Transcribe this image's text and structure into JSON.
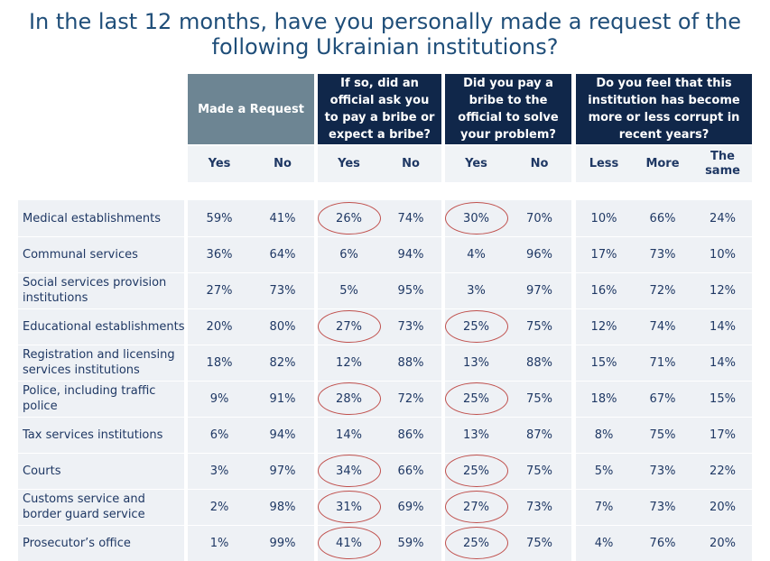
{
  "title": "In the last 12 months, have you personally made a request of the following Ukrainian institutions?",
  "headers": [
    "Made a Request",
    "If so, did an official ask you to pay a bribe or expect a bribe?",
    "Did you pay a bribe to the official to solve your problem?",
    "Do you feel that this institution has become more or less corrupt in recent years?"
  ],
  "subheaders": [
    "Yes",
    "No",
    "Yes",
    "No",
    "Yes",
    "No",
    "Less",
    "More",
    "The same"
  ],
  "rows": [
    {
      "label": "Medical establishments",
      "values": [
        "59%",
        "41%",
        "26%",
        "74%",
        "30%",
        "70%",
        "10%",
        "66%",
        "24%"
      ],
      "circled": [
        2,
        4
      ]
    },
    {
      "label": "Communal services",
      "values": [
        "36%",
        "64%",
        "6%",
        "94%",
        "4%",
        "96%",
        "17%",
        "73%",
        "10%"
      ],
      "circled": []
    },
    {
      "label": "Social services provision institutions",
      "values": [
        "27%",
        "73%",
        "5%",
        "95%",
        "3%",
        "97%",
        "16%",
        "72%",
        "12%"
      ],
      "circled": []
    },
    {
      "label": "Educational establishments",
      "values": [
        "20%",
        "80%",
        "27%",
        "73%",
        "25%",
        "75%",
        "12%",
        "74%",
        "14%"
      ],
      "circled": [
        2,
        4
      ]
    },
    {
      "label": "Registration and licensing services institutions",
      "values": [
        "18%",
        "82%",
        "12%",
        "88%",
        "13%",
        "88%",
        "15%",
        "71%",
        "14%"
      ],
      "circled": []
    },
    {
      "label": "Police, including traffic police",
      "values": [
        "9%",
        "91%",
        "28%",
        "72%",
        "25%",
        "75%",
        "18%",
        "67%",
        "15%"
      ],
      "circled": [
        2,
        4
      ]
    },
    {
      "label": "Tax services institutions",
      "values": [
        "6%",
        "94%",
        "14%",
        "86%",
        "13%",
        "87%",
        "8%",
        "75%",
        "17%"
      ],
      "circled": []
    },
    {
      "label": "Courts",
      "values": [
        "3%",
        "97%",
        "34%",
        "66%",
        "25%",
        "75%",
        "5%",
        "73%",
        "22%"
      ],
      "circled": [
        2,
        4
      ]
    },
    {
      "label": "Customs service and border guard service",
      "values": [
        "2%",
        "98%",
        "31%",
        "69%",
        "27%",
        "73%",
        "7%",
        "73%",
        "20%"
      ],
      "circled": [
        2,
        4
      ]
    },
    {
      "label": "Prosecutor’s office",
      "values": [
        "1%",
        "99%",
        "41%",
        "59%",
        "25%",
        "75%",
        "4%",
        "76%",
        "20%"
      ],
      "circled": [
        2,
        4
      ]
    }
  ],
  "colors": {
    "title": "#1f4e79",
    "header_gray": "#6d8593",
    "header_navy": "#10274a",
    "band": "#eef1f5",
    "ring": "#c0504d"
  }
}
